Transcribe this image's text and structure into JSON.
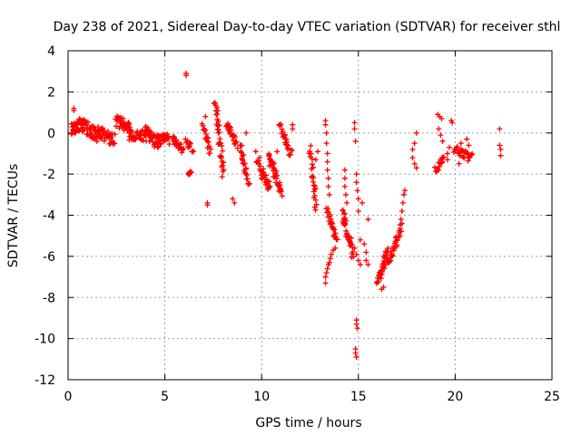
{
  "chart_data": {
    "type": "scatter",
    "title": "Day 238 of 2021, Sidereal Day-to-day VTEC variation (SDTVAR) for receiver sthl",
    "xlabel": "GPS time / hours",
    "ylabel": "SDTVAR / TECUs",
    "xlim": [
      0,
      25
    ],
    "ylim": [
      -12,
      4
    ],
    "xticks": [
      0,
      5,
      10,
      15,
      20,
      25
    ],
    "yticks": [
      -12,
      -10,
      -8,
      -6,
      -4,
      -2,
      0,
      2,
      4
    ],
    "grid": true,
    "marker": "+",
    "color": "#ff0000",
    "series": [
      {
        "name": "sthl",
        "segments": [
          {
            "x0": 0.2,
            "x1": 0.8,
            "y0": 0.2,
            "y1": 0.5,
            "n": 12,
            "spread": 0.6
          },
          {
            "x0": 0.8,
            "x1": 1.6,
            "y0": 0.4,
            "y1": -0.2,
            "n": 14,
            "spread": 0.7
          },
          {
            "x0": 1.6,
            "x1": 2.4,
            "y0": 0.1,
            "y1": -0.4,
            "n": 14,
            "spread": 0.7
          },
          {
            "x0": 2.5,
            "x1": 3.2,
            "y0": 0.6,
            "y1": 0.2,
            "n": 12,
            "spread": 0.6
          },
          {
            "x0": 3.2,
            "x1": 4.0,
            "y0": -0.2,
            "y1": -0.1,
            "n": 12,
            "spread": 0.6
          },
          {
            "x0": 4.0,
            "x1": 4.6,
            "y0": 0.1,
            "y1": -0.5,
            "n": 10,
            "spread": 0.5
          },
          {
            "x0": 4.6,
            "x1": 5.2,
            "y0": -0.3,
            "y1": -0.3,
            "n": 10,
            "spread": 0.5
          },
          {
            "x0": 5.4,
            "x1": 5.9,
            "y0": -0.3,
            "y1": -0.8,
            "n": 8,
            "spread": 0.4
          },
          {
            "x0": 6.1,
            "x1": 6.4,
            "y0": -0.4,
            "y1": -0.8,
            "n": 4,
            "spread": 0.3
          },
          {
            "x0": 6.2,
            "x1": 6.3,
            "y0": -2.0,
            "y1": -1.9,
            "n": 2,
            "spread": 0.1
          },
          {
            "x0": 7.0,
            "x1": 7.3,
            "y0": 0.3,
            "y1": -0.8,
            "n": 6,
            "spread": 0.4
          },
          {
            "x0": 7.6,
            "x1": 8.0,
            "y0": 1.6,
            "y1": -2.0,
            "n": 12,
            "spread": 0.5
          },
          {
            "x0": 8.2,
            "x1": 8.7,
            "y0": 0.5,
            "y1": -0.6,
            "n": 8,
            "spread": 0.4
          },
          {
            "x0": 8.9,
            "x1": 9.3,
            "y0": -0.7,
            "y1": -2.4,
            "n": 8,
            "spread": 0.4
          },
          {
            "x0": 9.8,
            "x1": 10.4,
            "y0": -1.6,
            "y1": -2.6,
            "n": 10,
            "spread": 0.5
          },
          {
            "x0": 10.4,
            "x1": 11.0,
            "y0": -1.2,
            "y1": -2.8,
            "n": 14,
            "spread": 0.6
          },
          {
            "x0": 11.0,
            "x1": 11.5,
            "y0": 0.2,
            "y1": -1.0,
            "n": 8,
            "spread": 0.5
          },
          {
            "x0": 12.5,
            "x1": 12.8,
            "y0": -0.8,
            "y1": -3.6,
            "n": 8,
            "spread": 0.4
          },
          {
            "x0": 13.4,
            "x1": 13.9,
            "y0": -3.8,
            "y1": -5.2,
            "n": 10,
            "spread": 0.4
          },
          {
            "x0": 14.2,
            "x1": 14.7,
            "y0": -4.0,
            "y1": -5.8,
            "n": 12,
            "spread": 0.5
          },
          {
            "x0": 16.0,
            "x1": 16.5,
            "y0": -7.2,
            "y1": -5.8,
            "n": 12,
            "spread": 0.4
          },
          {
            "x0": 16.5,
            "x1": 17.2,
            "y0": -6.4,
            "y1": -4.6,
            "n": 12,
            "spread": 0.4
          },
          {
            "x0": 19.0,
            "x1": 19.4,
            "y0": -1.8,
            "y1": -1.2,
            "n": 6,
            "spread": 0.3
          },
          {
            "x0": 20.0,
            "x1": 20.8,
            "y0": -0.8,
            "y1": -1.2,
            "n": 10,
            "spread": 0.4
          }
        ],
        "points": [
          {
            "x": 0.3,
            "y": 1.1
          },
          {
            "x": 0.3,
            "y": 1.2
          },
          {
            "x": 6.1,
            "y": 2.8
          },
          {
            "x": 6.1,
            "y": 2.9
          },
          {
            "x": 7.1,
            "y": 0.8
          },
          {
            "x": 7.2,
            "y": -3.4
          },
          {
            "x": 7.2,
            "y": -3.5
          },
          {
            "x": 8.5,
            "y": -3.2
          },
          {
            "x": 8.6,
            "y": -3.4
          },
          {
            "x": 9.2,
            "y": 0.0
          },
          {
            "x": 9.0,
            "y": -1.3
          },
          {
            "x": 9.7,
            "y": -0.9
          },
          {
            "x": 9.8,
            "y": -1.4
          },
          {
            "x": 9.9,
            "y": -1.2
          },
          {
            "x": 10.8,
            "y": -0.9
          },
          {
            "x": 10.9,
            "y": 0.4
          },
          {
            "x": 11.6,
            "y": 0.2
          },
          {
            "x": 11.6,
            "y": 0.4
          },
          {
            "x": 12.9,
            "y": -0.9
          },
          {
            "x": 12.8,
            "y": -1.3
          },
          {
            "x": 13.3,
            "y": 0.6
          },
          {
            "x": 13.3,
            "y": 0.4
          },
          {
            "x": 13.35,
            "y": 0.0
          },
          {
            "x": 13.35,
            "y": -0.5
          },
          {
            "x": 13.4,
            "y": -1.0
          },
          {
            "x": 13.4,
            "y": -1.4
          },
          {
            "x": 13.4,
            "y": -1.8
          },
          {
            "x": 13.45,
            "y": -2.2
          },
          {
            "x": 13.45,
            "y": -2.6
          },
          {
            "x": 13.5,
            "y": -3.0
          },
          {
            "x": 13.3,
            "y": -7.3
          },
          {
            "x": 13.3,
            "y": -7.0
          },
          {
            "x": 13.35,
            "y": -6.8
          },
          {
            "x": 13.4,
            "y": -6.6
          },
          {
            "x": 13.45,
            "y": -6.4
          },
          {
            "x": 13.5,
            "y": -6.3
          },
          {
            "x": 13.55,
            "y": -6.1
          },
          {
            "x": 13.6,
            "y": -5.9
          },
          {
            "x": 13.7,
            "y": -5.7
          },
          {
            "x": 13.8,
            "y": -5.6
          },
          {
            "x": 14.3,
            "y": -1.8
          },
          {
            "x": 14.3,
            "y": -2.2
          },
          {
            "x": 14.3,
            "y": -2.6
          },
          {
            "x": 14.35,
            "y": -3.0
          },
          {
            "x": 14.4,
            "y": -3.4
          },
          {
            "x": 14.8,
            "y": 0.5
          },
          {
            "x": 14.8,
            "y": 0.2
          },
          {
            "x": 14.85,
            "y": -0.4
          },
          {
            "x": 14.9,
            "y": -2.0
          },
          {
            "x": 14.9,
            "y": -2.4
          },
          {
            "x": 14.95,
            "y": -2.8
          },
          {
            "x": 15.0,
            "y": -3.2
          },
          {
            "x": 15.0,
            "y": -3.8
          },
          {
            "x": 14.9,
            "y": -9.1
          },
          {
            "x": 14.9,
            "y": -9.3
          },
          {
            "x": 14.95,
            "y": -9.5
          },
          {
            "x": 14.85,
            "y": -10.5
          },
          {
            "x": 14.85,
            "y": -10.7
          },
          {
            "x": 14.9,
            "y": -10.9
          },
          {
            "x": 14.8,
            "y": -5.6
          },
          {
            "x": 14.9,
            "y": -5.9
          },
          {
            "x": 15.0,
            "y": -6.2
          },
          {
            "x": 15.1,
            "y": -6.4
          },
          {
            "x": 15.1,
            "y": -5.2
          },
          {
            "x": 15.2,
            "y": -3.4
          },
          {
            "x": 15.3,
            "y": -5.4
          },
          {
            "x": 15.4,
            "y": -5.8
          },
          {
            "x": 15.4,
            "y": -6.2
          },
          {
            "x": 15.5,
            "y": -6.4
          },
          {
            "x": 15.5,
            "y": -4.2
          },
          {
            "x": 16.2,
            "y": -7.6
          },
          {
            "x": 16.3,
            "y": -7.5
          },
          {
            "x": 17.2,
            "y": -4.2
          },
          {
            "x": 17.25,
            "y": -3.8
          },
          {
            "x": 17.3,
            "y": -3.4
          },
          {
            "x": 17.35,
            "y": -3.0
          },
          {
            "x": 17.4,
            "y": -2.8
          },
          {
            "x": 17.8,
            "y": -0.8
          },
          {
            "x": 17.8,
            "y": -1.2
          },
          {
            "x": 17.9,
            "y": -1.5
          },
          {
            "x": 17.9,
            "y": -0.5
          },
          {
            "x": 18.0,
            "y": 0.0
          },
          {
            "x": 18.0,
            "y": -1.7
          },
          {
            "x": 19.1,
            "y": 0.9
          },
          {
            "x": 19.2,
            "y": 0.8
          },
          {
            "x": 19.3,
            "y": 0.7
          },
          {
            "x": 19.15,
            "y": 0.2
          },
          {
            "x": 19.25,
            "y": -0.1
          },
          {
            "x": 19.35,
            "y": -0.4
          },
          {
            "x": 19.6,
            "y": -1.0
          },
          {
            "x": 19.6,
            "y": -1.3
          },
          {
            "x": 19.8,
            "y": 0.6
          },
          {
            "x": 19.85,
            "y": 0.5
          },
          {
            "x": 19.7,
            "y": -0.7
          },
          {
            "x": 20.2,
            "y": -1.5
          },
          {
            "x": 20.3,
            "y": -0.5
          },
          {
            "x": 20.6,
            "y": -0.3
          },
          {
            "x": 20.7,
            "y": -0.6
          },
          {
            "x": 22.3,
            "y": 0.2
          },
          {
            "x": 22.3,
            "y": -0.6
          },
          {
            "x": 22.35,
            "y": -0.8
          },
          {
            "x": 22.35,
            "y": -1.1
          }
        ]
      }
    ]
  }
}
